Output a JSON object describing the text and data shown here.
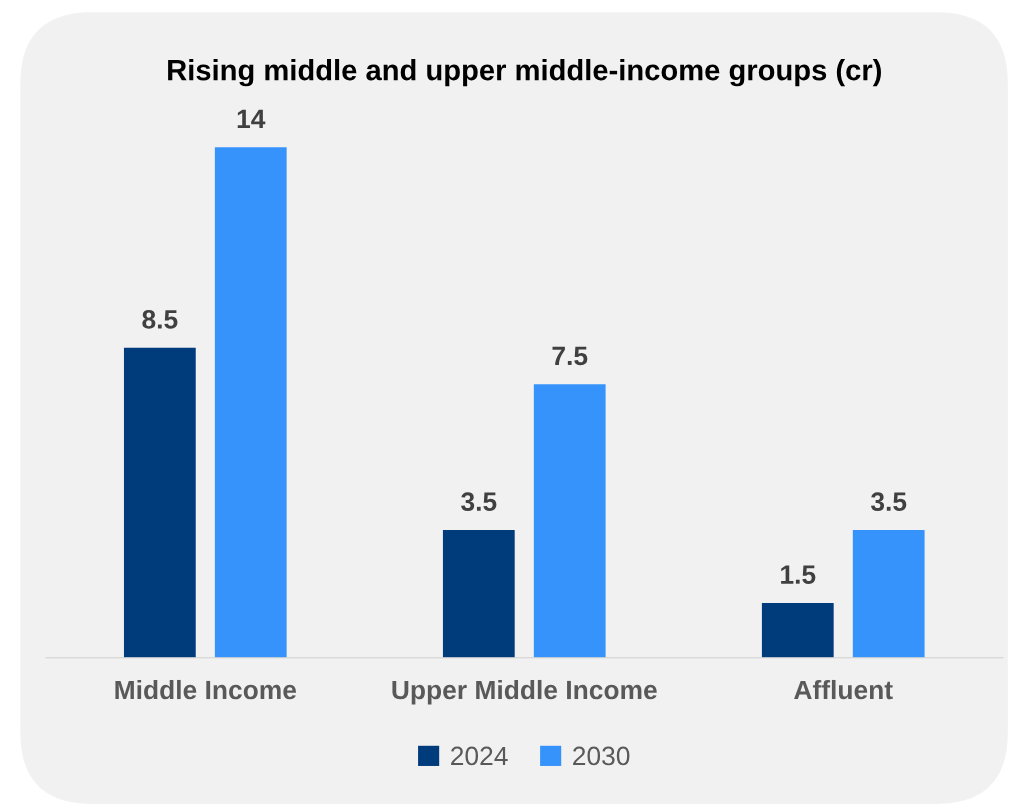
{
  "chart_data": {
    "type": "bar",
    "title": "Rising middle and upper middle-income groups (cr)",
    "categories": [
      "Middle Income",
      "Upper Middle Income",
      "Affluent"
    ],
    "series": [
      {
        "name": "2024",
        "color": "#003b7b",
        "values": [
          8.5,
          3.5,
          1.5
        ]
      },
      {
        "name": "2030",
        "color": "#3593fb",
        "values": [
          14,
          7.5,
          3.5
        ]
      }
    ],
    "data_labels": true,
    "grid": false,
    "legend": "bottom",
    "tick_labels": "x"
  }
}
